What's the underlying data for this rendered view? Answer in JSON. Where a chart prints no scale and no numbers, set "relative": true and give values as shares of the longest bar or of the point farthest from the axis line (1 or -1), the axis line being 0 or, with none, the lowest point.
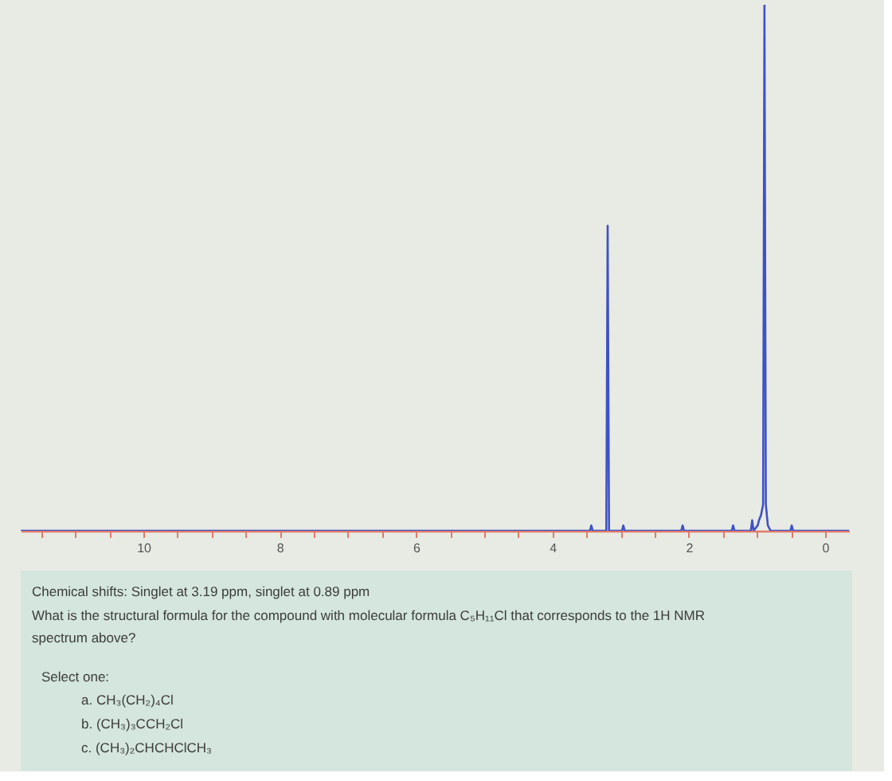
{
  "chart_data": {
    "type": "line",
    "relative": true,
    "color": "#3f51c6",
    "line_style": "solid",
    "x": [
      11.8,
      3.45,
      3.43,
      3.41,
      3.21,
      3.19,
      3.17,
      2.98,
      2.96,
      2.94,
      2.11,
      2.09,
      2.07,
      1.37,
      1.35,
      1.33,
      1.09,
      1.07,
      1.05,
      0.99,
      0.97,
      0.94,
      0.91,
      0.89,
      0.87,
      0.84,
      0.8,
      0.51,
      0.49,
      0.47,
      -0.35
    ],
    "values": [
      0,
      0,
      0.01,
      0,
      0,
      0.58,
      0,
      0,
      0.01,
      0,
      0,
      0.01,
      0,
      0,
      0.01,
      0,
      0,
      0.02,
      0,
      0.01,
      0.02,
      0.03,
      0.05,
      1,
      0.05,
      0.01,
      0,
      0,
      0.01,
      0,
      0
    ],
    "xlim": [
      11.8,
      -0.35
    ],
    "xticks": [
      {
        "value": 11.5,
        "label": null
      },
      {
        "value": 11,
        "label": null
      },
      {
        "value": 10.5,
        "label": null
      },
      10,
      {
        "value": 9.5,
        "label": null
      },
      {
        "value": 9,
        "label": null
      },
      {
        "value": 8.5,
        "label": null
      },
      8,
      {
        "value": 7.5,
        "label": null
      },
      {
        "value": 7,
        "label": null
      },
      {
        "value": 6.5,
        "label": null
      },
      6,
      {
        "value": 5.5,
        "label": null
      },
      {
        "value": 5,
        "label": null
      },
      {
        "value": 4.5,
        "label": null
      },
      4,
      {
        "value": 3.5,
        "label": null
      },
      {
        "value": 3,
        "label": null
      },
      {
        "value": 2.5,
        "label": null
      },
      2,
      {
        "value": 1.5,
        "label": null
      },
      {
        "value": 1,
        "label": null
      },
      {
        "value": 0.5,
        "label": null
      },
      0
    ],
    "annotations": [
      "Chemical shifts: Singlet at 3.19 ppm, singlet at 0.89 ppm",
      "What is the structural formula for the compound with molecular formula C₅H₁₁Cl that corresponds to the 1H NMR spectrum above?",
      "Select one:",
      "a. CH₃(CH₂)₄Cl",
      "b. (CH₃)₃CCH₂Cl",
      "c. (CH₃)₂CHCHClCH₃"
    ]
  }
}
